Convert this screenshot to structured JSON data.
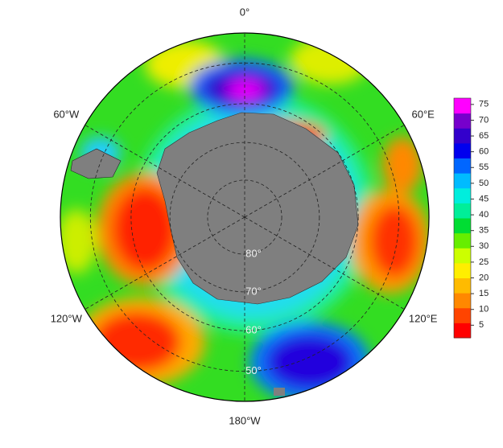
{
  "map": {
    "lon_labels": [
      {
        "value": 0,
        "label": "0°"
      },
      {
        "value": 60,
        "label": "60°E"
      },
      {
        "value": 120,
        "label": "120°E"
      },
      {
        "value": 180,
        "label": "180°W"
      },
      {
        "value": -120,
        "label": "120°W"
      },
      {
        "value": -60,
        "label": "60°W"
      }
    ],
    "lat_rings": [
      {
        "value": 80,
        "label": "80°"
      },
      {
        "value": 70,
        "label": "70°"
      },
      {
        "value": 60,
        "label": "60°"
      },
      {
        "value": 50,
        "label": "50°"
      }
    ],
    "lat_lim": 43,
    "colorbar": {
      "clim": [
        1,
        77
      ],
      "ticks": [
        5,
        10,
        15,
        20,
        25,
        30,
        35,
        40,
        45,
        50,
        55,
        60,
        65,
        70,
        75
      ],
      "colors": [
        "#ff0000",
        "#ff4400",
        "#ff8800",
        "#ffbb00",
        "#ffee00",
        "#ccff00",
        "#66ee00",
        "#00dd33",
        "#00ee99",
        "#00eedd",
        "#00bbff",
        "#0066ff",
        "#0000ee",
        "#3300cc",
        "#7700cc",
        "#ff00ff"
      ]
    }
  }
}
